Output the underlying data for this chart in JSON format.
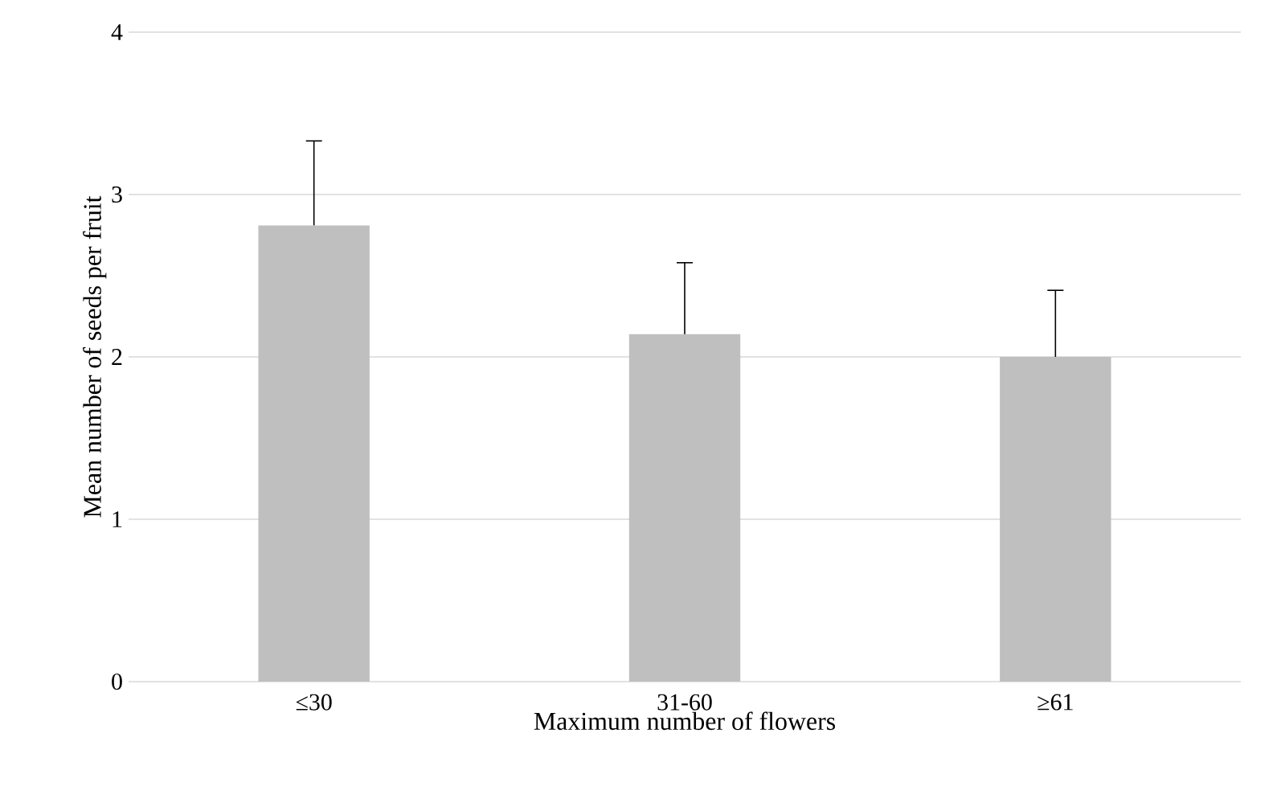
{
  "chart_data": {
    "type": "bar",
    "xlabel": "Maximum number of flowers",
    "ylabel": "Mean number of seeds per fruit",
    "categories": [
      "≤30",
      "31-60",
      "≥61"
    ],
    "values": [
      2.81,
      2.14,
      2.0
    ],
    "errors": [
      [
        2.81,
        3.33
      ],
      [
        2.14,
        2.58
      ],
      [
        2.0,
        2.41
      ]
    ],
    "color": "#bfbfbf",
    "ylim": [
      0,
      4
    ],
    "yticks": [
      0,
      1,
      2,
      3,
      4
    ],
    "grid": "y"
  }
}
